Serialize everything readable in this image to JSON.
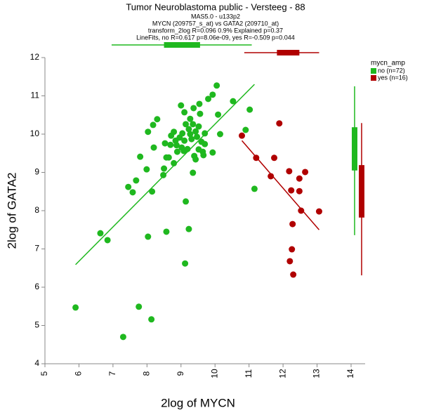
{
  "chart_data": {
    "type": "scatter",
    "title": "Tumor Neuroblastoma public - Versteeg - 88",
    "subtitle": [
      "MAS5.0 - u133p2",
      "MYCN (209757_s_at) vs GATA2 (209710_at)",
      "transform_2log R=0.096 0.9% Explained p=0.37",
      "LineFits, no R=0.617 p=8.06e-09, yes R=-0.509 p=0.044"
    ],
    "x_label": "2log of MYCN",
    "y_label": "2log of GATA2",
    "legend_title": "mycn_amp",
    "legend": "right",
    "xlim": [
      5,
      14
    ],
    "ylim": [
      4,
      12
    ],
    "xticks": [
      5,
      6,
      7,
      8,
      9,
      10,
      11,
      12,
      13,
      14
    ],
    "yticks": [
      4,
      5,
      6,
      7,
      8,
      9,
      10,
      11,
      12
    ],
    "series": [
      {
        "name": "no (n=72)",
        "color": "#1fb81f",
        "x": [
          5.9,
          6.63,
          6.84,
          7.3,
          7.76,
          8.13,
          8.03,
          8.57,
          9.12,
          9.23,
          9.14,
          7.45,
          7.58,
          7.68,
          8.15,
          7.99,
          7.8,
          8.03,
          8.18,
          8.3,
          8.2,
          8.48,
          8.5,
          8.57,
          8.53,
          8.64,
          8.69,
          8.71,
          8.79,
          8.84,
          8.87,
          8.79,
          8.89,
          8.96,
          9.02,
          9.04,
          9.08,
          9.1,
          9.19,
          9.23,
          9.27,
          9.31,
          9.35,
          9.43,
          9.47,
          9.52,
          9.39,
          9.43,
          9.52,
          9.35,
          9.0,
          9.1,
          9.27,
          9.14,
          9.37,
          9.54,
          9.56,
          9.7,
          9.64,
          9.66,
          9.7,
          9.8,
          9.93,
          10.05,
          10.09,
          9.93,
          10.15,
          10.53,
          11.02,
          10.9,
          11.16,
          9.6
        ],
        "y": [
          5.47,
          7.41,
          7.23,
          4.7,
          5.49,
          5.16,
          7.32,
          7.45,
          6.62,
          7.52,
          8.24,
          8.62,
          8.48,
          8.79,
          8.5,
          9.08,
          9.41,
          10.06,
          10.24,
          10.39,
          9.65,
          8.93,
          9.1,
          9.39,
          9.76,
          9.39,
          9.72,
          9.96,
          10.06,
          9.83,
          9.71,
          9.24,
          9.54,
          9.91,
          9.65,
          10.02,
          9.56,
          9.83,
          9.61,
          10.13,
          10.0,
          9.87,
          10.26,
          10.07,
          9.93,
          10.2,
          9.43,
          9.34,
          9.6,
          8.99,
          10.75,
          10.57,
          10.4,
          10.26,
          10.68,
          10.79,
          10.53,
          10.02,
          9.54,
          9.45,
          9.74,
          10.92,
          11.03,
          11.27,
          10.51,
          9.52,
          10.0,
          10.86,
          10.64,
          10.11,
          8.57,
          9.8
        ],
        "fit": {
          "x": [
            5.9,
            11.16
          ],
          "y": [
            6.59,
            11.3
          ]
        },
        "box_x": {
          "whislo": 6.96,
          "q1": 8.5,
          "med": 8.84,
          "q3": 9.56,
          "whishi": 11.08
        },
        "box_y": {
          "whislo": 7.36,
          "q1": 9.05,
          "med": 9.67,
          "q3": 10.18,
          "whishi": 11.25
        }
      },
      {
        "name": "yes (n=16)",
        "color": "#b00000",
        "x": [
          10.79,
          11.21,
          11.64,
          11.74,
          11.89,
          12.18,
          12.24,
          12.48,
          12.65,
          12.48,
          12.53,
          12.28,
          12.26,
          12.2,
          12.3,
          13.06
        ],
        "y": [
          9.96,
          9.38,
          8.9,
          9.38,
          10.28,
          9.03,
          8.53,
          8.84,
          9.01,
          8.51,
          8.0,
          7.65,
          6.99,
          6.68,
          6.33,
          7.98
        ],
        "fit": {
          "x": [
            10.79,
            13.06
          ],
          "y": [
            9.83,
            7.5
          ]
        },
        "box_x": {
          "whislo": 10.86,
          "q1": 11.82,
          "med": 12.15,
          "q3": 12.48,
          "whishi": 13.06
        },
        "box_y": {
          "whislo": 6.31,
          "q1": 7.82,
          "med": 8.64,
          "q3": 9.19,
          "whishi": 10.29
        }
      }
    ]
  }
}
